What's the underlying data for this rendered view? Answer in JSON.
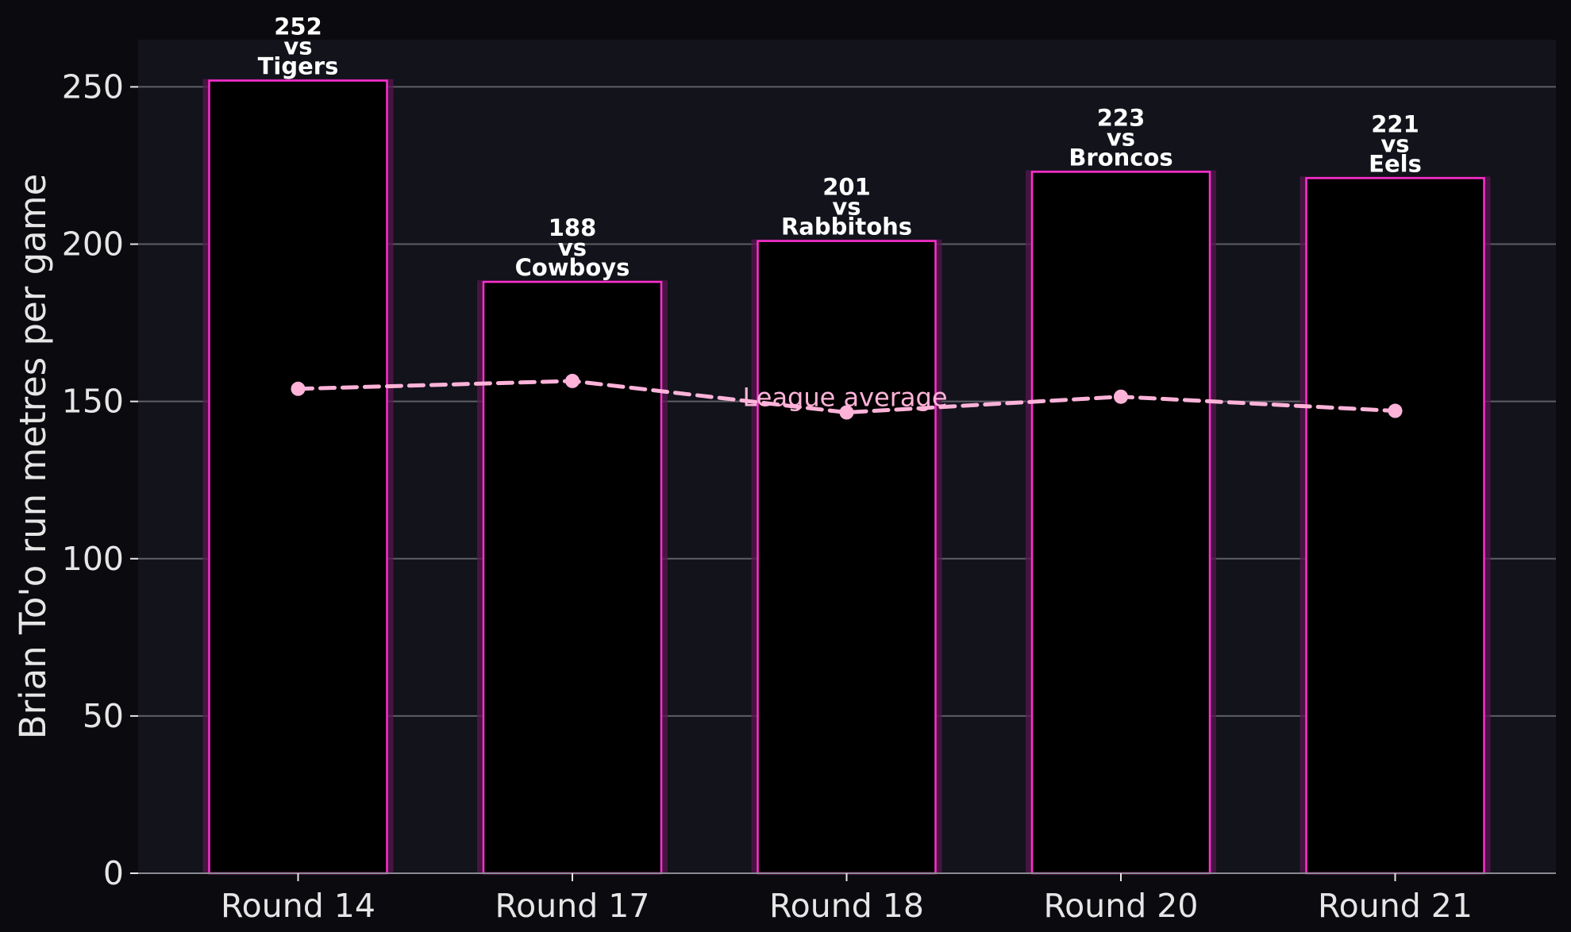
{
  "chart_data": {
    "type": "bar",
    "categories": [
      "Round 14",
      "Round 17",
      "Round 18",
      "Round 20",
      "Round 21"
    ],
    "values": [
      252,
      188,
      201,
      223,
      221
    ],
    "opponents": [
      "Tigers",
      "Cowboys",
      "Rabbitohs",
      "Broncos",
      "Eels"
    ],
    "bar_labels": [
      [
        "252",
        "vs",
        "Tigers"
      ],
      [
        "188",
        "vs",
        "Cowboys"
      ],
      [
        "201",
        "vs",
        "Rabbitohs"
      ],
      [
        "223",
        "vs",
        "Broncos"
      ],
      [
        "221",
        "vs",
        "Eels"
      ]
    ],
    "league_average": {
      "name": "League average",
      "values": [
        154,
        156.5,
        146.5,
        151.5,
        147
      ]
    },
    "title": "",
    "xlabel": "",
    "ylabel": "Brian To'o run metres per game",
    "ylim": [
      0,
      265
    ],
    "yticks": [
      0,
      50,
      100,
      150,
      200,
      250
    ],
    "grid": true,
    "legend": "none",
    "colors": {
      "page_background": "#0b0b0f",
      "plot_background": "#12131b",
      "bar_fill": "#000000",
      "bar_edge": "#ff2fd0",
      "bar_glow": "#5a1650",
      "grid": "#5e5e66",
      "average_line": "#ffb3d9",
      "text": "#e6e6e6"
    }
  }
}
